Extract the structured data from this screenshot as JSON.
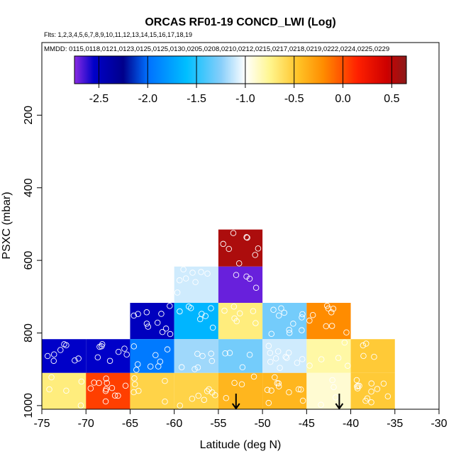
{
  "chart_data": {
    "type": "heatmap",
    "title": "ORCAS RF01-19 CONCD_LWI (Log)",
    "subtitle_flights": "Flts: 1,2,3,4,5,6,7,8,9,10,11,12,13,14,15,16,17,18,19",
    "subtitle_dates": "MMDD: 0115,0118,0121,0123,0125,0125,0130,0205,0208,0210,0212,0215,0217,0218,0219,0222,0224,0225,0229",
    "xlabel": "Latitude (deg N)",
    "ylabel": "PSXC (mbar)",
    "xlim": [
      -75,
      -30
    ],
    "ylim": [
      1010,
      0
    ],
    "x_ticks": [
      "-75",
      "-70",
      "-65",
      "-60",
      "-55",
      "-50",
      "-45",
      "-40",
      "-35",
      "-30"
    ],
    "x_tick_values": [
      -75,
      -70,
      -65,
      -60,
      -55,
      -50,
      -45,
      -40,
      -35,
      -30
    ],
    "y_ticks": [
      "200",
      "400",
      "600",
      "800",
      "1000"
    ],
    "y_tick_values": [
      200,
      400,
      600,
      800,
      1000
    ],
    "colorbar": {
      "min": -2.75,
      "max": 0.65,
      "ticks": [
        "-2.5",
        "-2.0",
        "-1.5",
        "-1.0",
        "-0.5",
        "0.0",
        "0.5"
      ],
      "tick_values": [
        -2.5,
        -2.0,
        -1.5,
        -1.0,
        -0.5,
        0.0,
        0.5
      ],
      "stops": [
        {
          "v": -2.75,
          "c": "#8a2be2"
        },
        {
          "v": -2.55,
          "c": "#0000c8"
        },
        {
          "v": -2.25,
          "c": "#00008b"
        },
        {
          "v": -2.0,
          "c": "#0070ff"
        },
        {
          "v": -1.6,
          "c": "#00bfff"
        },
        {
          "v": -1.25,
          "c": "#87cefa"
        },
        {
          "v": -1.0,
          "c": "#ffffff"
        },
        {
          "v": -0.75,
          "c": "#fff68f"
        },
        {
          "v": -0.45,
          "c": "#ffc125"
        },
        {
          "v": -0.2,
          "c": "#ff8c00"
        },
        {
          "v": 0.15,
          "c": "#ff2000"
        },
        {
          "v": 0.45,
          "c": "#cd0000"
        },
        {
          "v": 0.65,
          "c": "#8b1a1a"
        }
      ]
    },
    "cell_width_deg": 5,
    "cells": [
      {
        "lat": -72.5,
        "p_top": 817,
        "p_bot": 910,
        "value": -2.55
      },
      {
        "lat": -72.5,
        "p_top": 910,
        "p_bot": 1010,
        "value": -0.7
      },
      {
        "lat": -67.5,
        "p_top": 817,
        "p_bot": 910,
        "value": -2.55
      },
      {
        "lat": -67.5,
        "p_top": 910,
        "p_bot": 1010,
        "value": 0.05
      },
      {
        "lat": -62.5,
        "p_top": 717,
        "p_bot": 817,
        "value": -2.5
      },
      {
        "lat": -62.5,
        "p_top": 817,
        "p_bot": 910,
        "value": -1.95
      },
      {
        "lat": -62.5,
        "p_top": 910,
        "p_bot": 1010,
        "value": -0.55
      },
      {
        "lat": -57.5,
        "p_top": 617,
        "p_bot": 717,
        "value": -1.1
      },
      {
        "lat": -57.5,
        "p_top": 717,
        "p_bot": 817,
        "value": -1.65
      },
      {
        "lat": -57.5,
        "p_top": 817,
        "p_bot": 910,
        "value": -1.2
      },
      {
        "lat": -57.5,
        "p_top": 910,
        "p_bot": 1010,
        "value": -0.55
      },
      {
        "lat": -52.5,
        "p_top": 515,
        "p_bot": 617,
        "value": 0.55
      },
      {
        "lat": -52.5,
        "p_top": 617,
        "p_bot": 717,
        "value": -2.7
      },
      {
        "lat": -52.5,
        "p_top": 717,
        "p_bot": 817,
        "value": -0.7
      },
      {
        "lat": -52.5,
        "p_top": 817,
        "p_bot": 910,
        "value": -1.3
      },
      {
        "lat": -52.5,
        "p_top": 910,
        "p_bot": 1010,
        "value": -0.4
      },
      {
        "lat": -47.5,
        "p_top": 717,
        "p_bot": 817,
        "value": -1.3
      },
      {
        "lat": -47.5,
        "p_top": 817,
        "p_bot": 910,
        "value": -1.1
      },
      {
        "lat": -47.5,
        "p_top": 910,
        "p_bot": 1010,
        "value": -0.4
      },
      {
        "lat": -42.5,
        "p_top": 717,
        "p_bot": 817,
        "value": -0.2
      },
      {
        "lat": -42.5,
        "p_top": 817,
        "p_bot": 910,
        "value": -0.8
      },
      {
        "lat": -42.5,
        "p_top": 910,
        "p_bot": 1010,
        "value": -0.9
      },
      {
        "lat": -37.5,
        "p_top": 817,
        "p_bot": 910,
        "value": -0.5
      },
      {
        "lat": -37.5,
        "p_top": 910,
        "p_bot": 1010,
        "value": -0.5
      }
    ],
    "arrow_markers_lat": [
      -53,
      -41.3
    ],
    "sample_points": {
      "description": "white open circles marking individual samples",
      "seed": 7
    }
  }
}
